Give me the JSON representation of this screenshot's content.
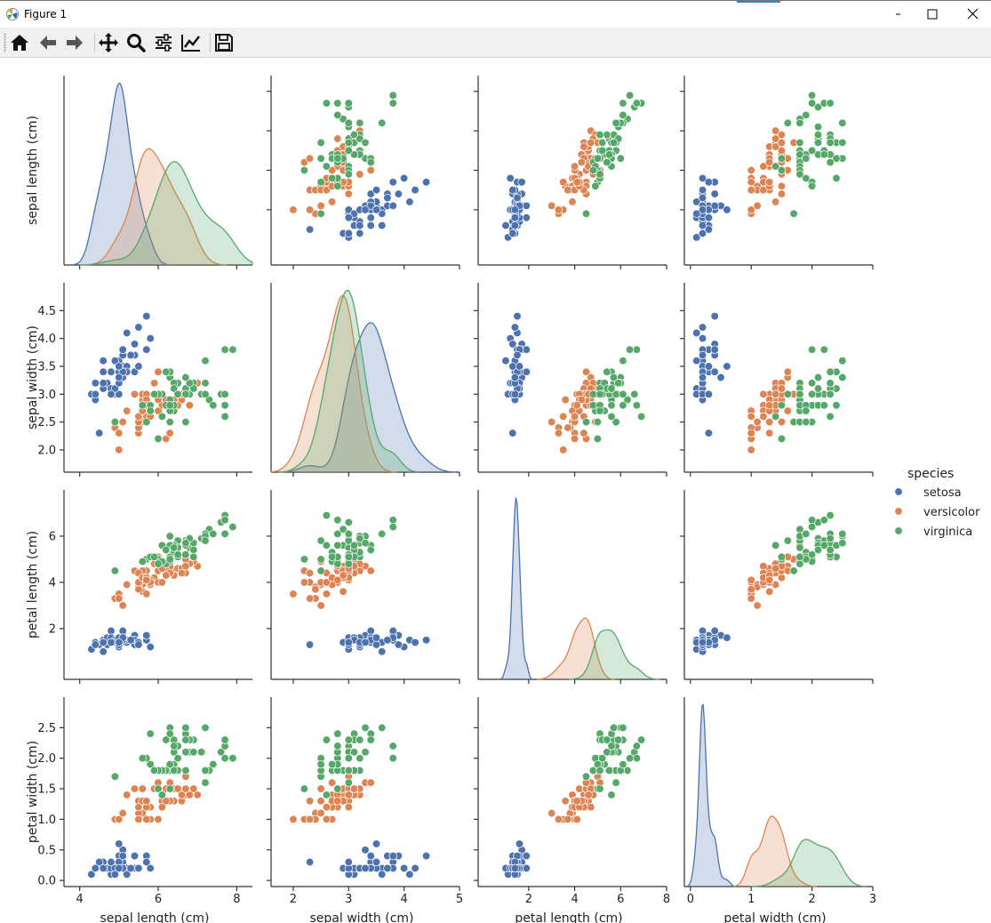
{
  "window": {
    "title": "Figure 1"
  },
  "toolbar": {
    "buttons": [
      {
        "name": "home-button",
        "icon": "home-icon",
        "x": 22
      },
      {
        "name": "back-button",
        "icon": "arrow-left-icon",
        "x": 54
      },
      {
        "name": "forward-button",
        "icon": "arrow-right-icon",
        "x": 84
      },
      {
        "name": "pan-button",
        "icon": "move-icon",
        "x": 122
      },
      {
        "name": "zoom-button",
        "icon": "magnifier-icon",
        "x": 153
      },
      {
        "name": "configure-subplots-button",
        "icon": "sliders-icon",
        "x": 184
      },
      {
        "name": "edit-axes-button",
        "icon": "line-chart-icon",
        "x": 215
      },
      {
        "name": "save-button",
        "icon": "floppy-disk-icon",
        "x": 252
      }
    ]
  },
  "colors": {
    "setosa": "#4c72b0",
    "versicolor": "#dd8452",
    "virginica": "#55a868"
  },
  "chart_data": {
    "type": "scatter",
    "variables": [
      "sepal length (cm)",
      "sepal width (cm)",
      "petal length (cm)",
      "petal width (cm)"
    ],
    "axis_ranges": [
      [
        3.6,
        8.4
      ],
      [
        1.6,
        5.0
      ],
      [
        -0.2,
        8.0
      ],
      [
        -0.1,
        3.0
      ]
    ],
    "ticks": [
      [
        4,
        6,
        8
      ],
      [
        2,
        3,
        4,
        5
      ],
      [
        2,
        4,
        6,
        8
      ],
      [
        0,
        1,
        2,
        3
      ]
    ],
    "row_ticks": [
      [
        "5",
        "6",
        "7",
        "8"
      ],
      [
        "2.0",
        "2.5",
        "3.0",
        "3.5",
        "4.0",
        "4.5"
      ],
      [
        "2",
        "4",
        "6"
      ],
      [
        "0.0",
        "0.5",
        "1.0",
        "1.5",
        "2.0",
        "2.5"
      ]
    ],
    "col_ticks": [
      [
        "4",
        "6",
        "8"
      ],
      [
        "2",
        "3",
        "4",
        "5"
      ],
      [
        "2",
        "4",
        "6",
        "8"
      ],
      [
        "0",
        "1",
        "2",
        "3"
      ]
    ],
    "legend": {
      "title": "species",
      "position": "right",
      "entries": [
        "setosa",
        "versicolor",
        "virginica"
      ]
    },
    "series": [
      {
        "name": "setosa",
        "points": [
          [
            5.1,
            3.5,
            1.4,
            0.2
          ],
          [
            4.9,
            3.0,
            1.4,
            0.2
          ],
          [
            4.7,
            3.2,
            1.3,
            0.2
          ],
          [
            4.6,
            3.1,
            1.5,
            0.2
          ],
          [
            5.0,
            3.6,
            1.4,
            0.2
          ],
          [
            5.4,
            3.9,
            1.7,
            0.4
          ],
          [
            4.6,
            3.4,
            1.4,
            0.3
          ],
          [
            5.0,
            3.4,
            1.5,
            0.2
          ],
          [
            4.4,
            2.9,
            1.4,
            0.2
          ],
          [
            4.9,
            3.1,
            1.5,
            0.1
          ],
          [
            5.4,
            3.7,
            1.5,
            0.2
          ],
          [
            4.8,
            3.4,
            1.6,
            0.2
          ],
          [
            4.8,
            3.0,
            1.4,
            0.1
          ],
          [
            4.3,
            3.0,
            1.1,
            0.1
          ],
          [
            5.8,
            4.0,
            1.2,
            0.2
          ],
          [
            5.7,
            4.4,
            1.5,
            0.4
          ],
          [
            5.4,
            3.9,
            1.3,
            0.4
          ],
          [
            5.1,
            3.5,
            1.4,
            0.3
          ],
          [
            5.7,
            3.8,
            1.7,
            0.3
          ],
          [
            5.1,
            3.8,
            1.5,
            0.3
          ],
          [
            5.4,
            3.4,
            1.7,
            0.2
          ],
          [
            5.1,
            3.7,
            1.5,
            0.4
          ],
          [
            4.6,
            3.6,
            1.0,
            0.2
          ],
          [
            5.1,
            3.3,
            1.7,
            0.5
          ],
          [
            4.8,
            3.4,
            1.9,
            0.2
          ],
          [
            5.0,
            3.0,
            1.6,
            0.2
          ],
          [
            5.0,
            3.4,
            1.6,
            0.4
          ],
          [
            5.2,
            3.5,
            1.5,
            0.2
          ],
          [
            5.2,
            3.4,
            1.4,
            0.2
          ],
          [
            4.7,
            3.2,
            1.6,
            0.2
          ],
          [
            4.8,
            3.1,
            1.6,
            0.2
          ],
          [
            5.4,
            3.4,
            1.5,
            0.4
          ],
          [
            5.2,
            4.1,
            1.5,
            0.1
          ],
          [
            5.5,
            4.2,
            1.4,
            0.2
          ],
          [
            4.9,
            3.1,
            1.5,
            0.2
          ],
          [
            5.0,
            3.2,
            1.2,
            0.2
          ],
          [
            5.5,
            3.5,
            1.3,
            0.2
          ],
          [
            4.9,
            3.6,
            1.4,
            0.1
          ],
          [
            4.4,
            3.0,
            1.3,
            0.2
          ],
          [
            5.1,
            3.4,
            1.5,
            0.2
          ],
          [
            5.0,
            3.5,
            1.3,
            0.3
          ],
          [
            4.5,
            2.3,
            1.3,
            0.3
          ],
          [
            4.4,
            3.2,
            1.3,
            0.2
          ],
          [
            5.0,
            3.5,
            1.6,
            0.6
          ],
          [
            5.1,
            3.8,
            1.9,
            0.4
          ],
          [
            4.8,
            3.0,
            1.4,
            0.3
          ],
          [
            5.1,
            3.8,
            1.6,
            0.2
          ],
          [
            4.6,
            3.2,
            1.4,
            0.2
          ],
          [
            5.3,
            3.7,
            1.5,
            0.2
          ],
          [
            5.0,
            3.3,
            1.4,
            0.2
          ]
        ]
      },
      {
        "name": "versicolor",
        "points": [
          [
            7.0,
            3.2,
            4.7,
            1.4
          ],
          [
            6.4,
            3.2,
            4.5,
            1.5
          ],
          [
            6.9,
            3.1,
            4.9,
            1.5
          ],
          [
            5.5,
            2.3,
            4.0,
            1.3
          ],
          [
            6.5,
            2.8,
            4.6,
            1.5
          ],
          [
            5.7,
            2.8,
            4.5,
            1.3
          ],
          [
            6.3,
            3.3,
            4.7,
            1.6
          ],
          [
            4.9,
            2.4,
            3.3,
            1.0
          ],
          [
            6.6,
            2.9,
            4.6,
            1.3
          ],
          [
            5.2,
            2.7,
            3.9,
            1.4
          ],
          [
            5.0,
            2.0,
            3.5,
            1.0
          ],
          [
            5.9,
            3.0,
            4.2,
            1.5
          ],
          [
            6.0,
            2.2,
            4.0,
            1.0
          ],
          [
            6.1,
            2.9,
            4.7,
            1.4
          ],
          [
            5.6,
            2.9,
            3.6,
            1.3
          ],
          [
            6.7,
            3.1,
            4.4,
            1.4
          ],
          [
            5.6,
            3.0,
            4.5,
            1.5
          ],
          [
            5.8,
            2.7,
            4.1,
            1.0
          ],
          [
            6.2,
            2.2,
            4.5,
            1.5
          ],
          [
            5.6,
            2.5,
            3.9,
            1.1
          ],
          [
            5.9,
            3.2,
            4.8,
            1.8
          ],
          [
            6.1,
            2.8,
            4.0,
            1.3
          ],
          [
            6.3,
            2.5,
            4.9,
            1.5
          ],
          [
            6.1,
            2.8,
            4.7,
            1.2
          ],
          [
            6.4,
            2.9,
            4.3,
            1.3
          ],
          [
            6.6,
            3.0,
            4.4,
            1.4
          ],
          [
            6.8,
            2.8,
            4.8,
            1.4
          ],
          [
            6.7,
            3.0,
            5.0,
            1.7
          ],
          [
            6.0,
            2.9,
            4.5,
            1.5
          ],
          [
            5.7,
            2.6,
            3.5,
            1.0
          ],
          [
            5.5,
            2.4,
            3.8,
            1.1
          ],
          [
            5.5,
            2.4,
            3.7,
            1.0
          ],
          [
            5.8,
            2.7,
            3.9,
            1.2
          ],
          [
            6.0,
            2.7,
            5.1,
            1.6
          ],
          [
            5.4,
            3.0,
            4.5,
            1.5
          ],
          [
            6.0,
            3.4,
            4.5,
            1.6
          ],
          [
            6.7,
            3.1,
            4.7,
            1.5
          ],
          [
            6.3,
            2.3,
            4.4,
            1.3
          ],
          [
            5.6,
            3.0,
            4.1,
            1.3
          ],
          [
            5.5,
            2.5,
            4.0,
            1.3
          ],
          [
            5.5,
            2.6,
            4.4,
            1.2
          ],
          [
            6.1,
            3.0,
            4.6,
            1.4
          ],
          [
            5.8,
            2.6,
            4.0,
            1.2
          ],
          [
            5.0,
            2.3,
            3.3,
            1.0
          ],
          [
            5.6,
            2.7,
            4.2,
            1.3
          ],
          [
            5.7,
            3.0,
            4.2,
            1.2
          ],
          [
            5.7,
            2.9,
            4.2,
            1.3
          ],
          [
            6.2,
            2.9,
            4.3,
            1.3
          ],
          [
            5.1,
            2.5,
            3.0,
            1.1
          ],
          [
            5.7,
            2.8,
            4.1,
            1.3
          ]
        ]
      },
      {
        "name": "virginica",
        "points": [
          [
            6.3,
            3.3,
            6.0,
            2.5
          ],
          [
            5.8,
            2.7,
            5.1,
            1.9
          ],
          [
            7.1,
            3.0,
            5.9,
            2.1
          ],
          [
            6.3,
            2.9,
            5.6,
            1.8
          ],
          [
            6.5,
            3.0,
            5.8,
            2.2
          ],
          [
            7.6,
            3.0,
            6.6,
            2.1
          ],
          [
            4.9,
            2.5,
            4.5,
            1.7
          ],
          [
            7.3,
            2.9,
            6.3,
            1.8
          ],
          [
            6.7,
            2.5,
            5.8,
            1.8
          ],
          [
            7.2,
            3.6,
            6.1,
            2.5
          ],
          [
            6.5,
            3.2,
            5.1,
            2.0
          ],
          [
            6.4,
            2.7,
            5.3,
            1.9
          ],
          [
            6.8,
            3.0,
            5.5,
            2.1
          ],
          [
            5.7,
            2.5,
            5.0,
            2.0
          ],
          [
            5.8,
            2.8,
            5.1,
            2.4
          ],
          [
            6.4,
            3.2,
            5.3,
            2.3
          ],
          [
            6.5,
            3.0,
            5.5,
            1.8
          ],
          [
            7.7,
            3.8,
            6.7,
            2.2
          ],
          [
            7.7,
            2.6,
            6.9,
            2.3
          ],
          [
            6.0,
            2.2,
            5.0,
            1.5
          ],
          [
            6.9,
            3.2,
            5.7,
            2.3
          ],
          [
            5.6,
            2.8,
            4.9,
            2.0
          ],
          [
            7.7,
            2.8,
            6.7,
            2.0
          ],
          [
            6.3,
            2.7,
            4.9,
            1.8
          ],
          [
            6.7,
            3.3,
            5.7,
            2.1
          ],
          [
            7.2,
            3.2,
            6.0,
            1.8
          ],
          [
            6.2,
            2.8,
            4.8,
            1.8
          ],
          [
            6.1,
            3.0,
            4.9,
            1.8
          ],
          [
            6.4,
            2.8,
            5.6,
            2.1
          ],
          [
            7.2,
            3.0,
            5.8,
            1.6
          ],
          [
            7.4,
            2.8,
            6.1,
            1.9
          ],
          [
            7.9,
            3.8,
            6.4,
            2.0
          ],
          [
            6.4,
            2.8,
            5.6,
            2.2
          ],
          [
            6.3,
            2.8,
            5.1,
            1.5
          ],
          [
            6.1,
            2.6,
            5.6,
            1.4
          ],
          [
            7.7,
            3.0,
            6.1,
            2.3
          ],
          [
            6.3,
            3.4,
            5.6,
            2.4
          ],
          [
            6.4,
            3.1,
            5.5,
            1.8
          ],
          [
            6.0,
            3.0,
            4.8,
            1.8
          ],
          [
            6.9,
            3.1,
            5.4,
            2.1
          ],
          [
            6.7,
            3.1,
            5.6,
            2.4
          ],
          [
            6.9,
            3.1,
            5.1,
            2.3
          ],
          [
            5.8,
            2.7,
            5.1,
            1.9
          ],
          [
            6.8,
            3.2,
            5.9,
            2.3
          ],
          [
            6.7,
            3.3,
            5.7,
            2.5
          ],
          [
            6.7,
            3.0,
            5.2,
            2.3
          ],
          [
            6.3,
            2.5,
            5.0,
            1.9
          ],
          [
            6.5,
            3.0,
            5.2,
            2.0
          ],
          [
            6.2,
            3.4,
            5.4,
            2.3
          ],
          [
            5.9,
            3.0,
            5.1,
            1.8
          ]
        ]
      }
    ]
  }
}
